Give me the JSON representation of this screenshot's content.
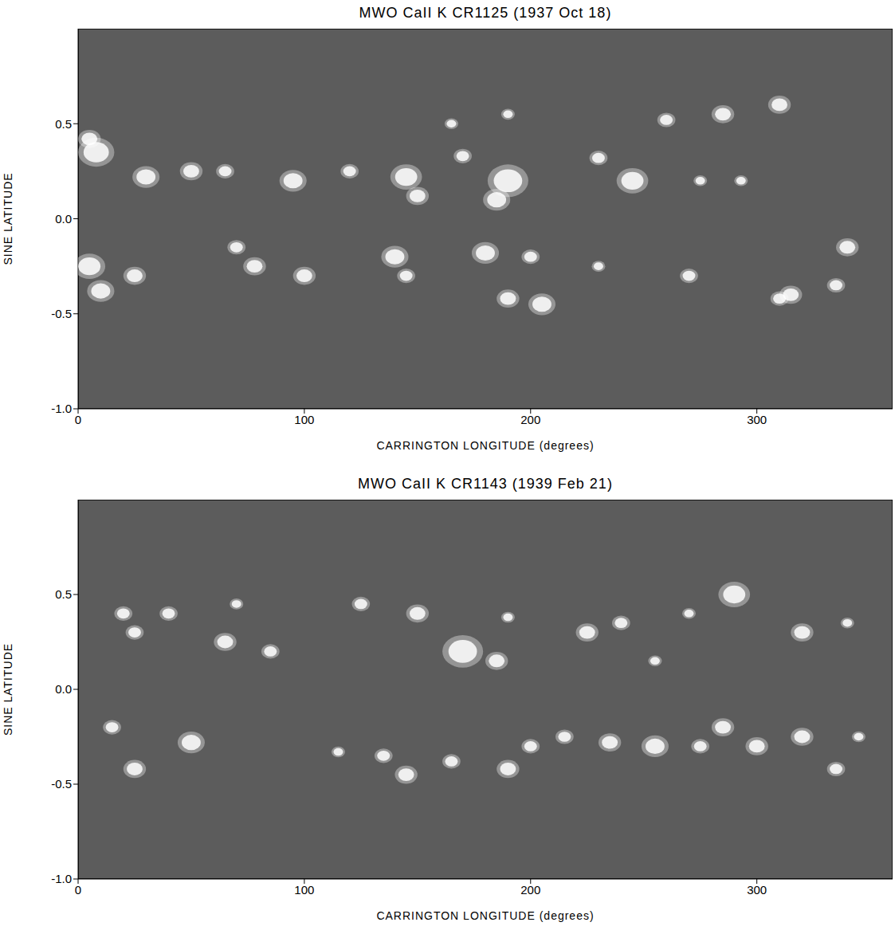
{
  "chart_data": [
    {
      "type": "scatter",
      "title": "MWO CaII K CR1125 (1937 Oct 18)",
      "x_label": "CARRINGTON LONGITUDE (degrees)",
      "y_label": "SINE LATITUDE",
      "xlim": [
        0,
        360
      ],
      "xticks": [
        0,
        100,
        200,
        300
      ],
      "ylim": [
        -1,
        1
      ],
      "yticks": [
        {
          "value": -1,
          "label": "-1.0"
        },
        -0.5,
        {
          "value": 0,
          "label": "0.0"
        },
        0.5
      ],
      "grid": false,
      "series": [
        {
          "color": "#ffffff",
          "marker": "ellipse",
          "x": [
            8,
            5,
            30,
            50,
            65,
            95,
            120,
            145,
            150,
            190,
            185,
            170,
            245,
            275,
            293,
            230,
            165,
            190,
            310,
            285,
            260,
            5,
            10,
            25,
            70,
            78,
            100,
            140,
            145,
            180,
            200,
            205,
            190,
            230,
            270,
            315,
            335,
            340,
            310
          ],
          "y": [
            0.35,
            0.42,
            0.22,
            0.25,
            0.25,
            0.2,
            0.25,
            0.22,
            0.12,
            0.2,
            0.1,
            0.33,
            0.2,
            0.2,
            0.2,
            0.32,
            0.5,
            0.55,
            0.6,
            0.55,
            0.52,
            -0.25,
            -0.38,
            -0.3,
            -0.15,
            -0.25,
            -0.3,
            -0.2,
            -0.3,
            -0.18,
            -0.2,
            -0.45,
            -0.42,
            -0.25,
            -0.3,
            -0.4,
            -0.35,
            -0.15,
            -0.42
          ],
          "size": [
            8,
            5,
            6,
            5,
            4,
            6,
            4,
            7,
            5,
            9,
            6,
            4,
            7,
            3,
            3,
            4,
            3,
            3,
            5,
            5,
            4,
            7,
            6,
            5,
            4,
            5,
            5,
            6,
            4,
            6,
            4,
            6,
            5,
            3,
            4,
            5,
            4,
            5,
            4
          ]
        }
      ]
    },
    {
      "type": "scatter",
      "title": "MWO CaII K CR1143 (1939 Feb 21)",
      "x_label": "CARRINGTON LONGITUDE (degrees)",
      "y_label": "SINE LATITUDE",
      "xlim": [
        0,
        360
      ],
      "xticks": [
        0,
        100,
        200,
        300
      ],
      "ylim": [
        -1,
        1
      ],
      "yticks": [
        {
          "value": -1,
          "label": "-1.0"
        },
        -0.5,
        {
          "value": 0,
          "label": "0.0"
        },
        0.5
      ],
      "grid": false,
      "series": [
        {
          "color": "#ffffff",
          "marker": "ellipse",
          "x": [
            20,
            40,
            70,
            65,
            85,
            25,
            125,
            150,
            170,
            185,
            190,
            225,
            240,
            255,
            290,
            320,
            340,
            270,
            15,
            25,
            50,
            115,
            135,
            145,
            165,
            190,
            200,
            215,
            235,
            255,
            275,
            285,
            300,
            320,
            335,
            345
          ],
          "y": [
            0.4,
            0.4,
            0.45,
            0.25,
            0.2,
            0.3,
            0.45,
            0.4,
            0.2,
            0.15,
            0.38,
            0.3,
            0.35,
            0.15,
            0.5,
            0.3,
            0.35,
            0.4,
            -0.2,
            -0.42,
            -0.28,
            -0.33,
            -0.35,
            -0.45,
            -0.38,
            -0.42,
            -0.3,
            -0.25,
            -0.28,
            -0.3,
            -0.3,
            -0.2,
            -0.3,
            -0.25,
            -0.42,
            -0.25
          ],
          "size": [
            4,
            4,
            3,
            5,
            4,
            4,
            4,
            5,
            9,
            5,
            3,
            5,
            4,
            3,
            7,
            5,
            3,
            3,
            4,
            5,
            6,
            3,
            4,
            5,
            4,
            5,
            4,
            4,
            5,
            6,
            4,
            5,
            5,
            5,
            4,
            3
          ]
        }
      ]
    }
  ]
}
